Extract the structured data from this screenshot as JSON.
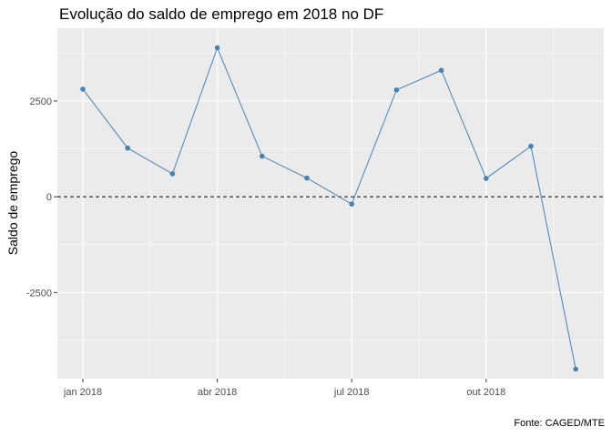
{
  "chart_data": {
    "type": "line",
    "title": "Evolução do saldo de emprego em 2018 no DF",
    "ylabel": "Saldo de emprego",
    "xlabel": "",
    "caption": "Fonte: CAGED/MTE",
    "x": [
      "2018-01",
      "2018-02",
      "2018-03",
      "2018-04",
      "2018-05",
      "2018-06",
      "2018-07",
      "2018-08",
      "2018-09",
      "2018-10",
      "2018-11",
      "2018-12"
    ],
    "x_ticks": [
      {
        "x": "2018-01",
        "label": "jan 2018"
      },
      {
        "x": "2018-04",
        "label": "abr 2018"
      },
      {
        "x": "2018-07",
        "label": "jul 2018"
      },
      {
        "x": "2018-10",
        "label": "out 2018"
      }
    ],
    "values": [
      2810,
      1270,
      600,
      3890,
      1060,
      490,
      -190,
      2790,
      3300,
      480,
      1320,
      -4500
    ],
    "y_ticks": [
      -2500,
      0,
      2500
    ],
    "ylim": [
      -4750,
      4400
    ],
    "reference_line": {
      "y": 0,
      "style": "dashed"
    },
    "grid": true,
    "colors": {
      "line": "#4682b4",
      "panel": "#ebebeb",
      "grid": "#ffffff",
      "reference": "#000000"
    }
  }
}
